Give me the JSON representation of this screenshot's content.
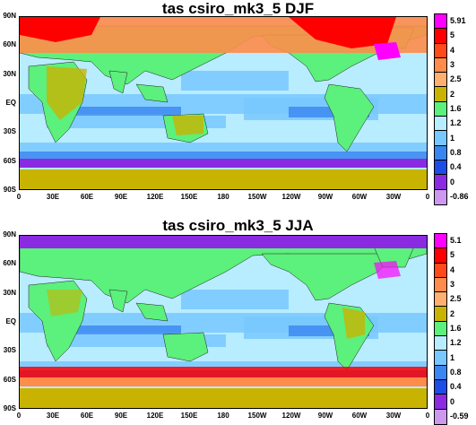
{
  "panels": [
    {
      "title": "tas csiro_mk3_5 DJF",
      "colorbar_labels": [
        "5.91",
        "5",
        "4",
        "3",
        "2.5",
        "2",
        "1.6",
        "1.2",
        "1",
        "0.8",
        "0.4",
        "0",
        "-0.86"
      ]
    },
    {
      "title": "tas csiro_mk3_5 JJA",
      "colorbar_labels": [
        "5.1",
        "5",
        "4",
        "3",
        "2.5",
        "2",
        "1.6",
        "1.2",
        "1",
        "0.8",
        "0.4",
        "0",
        "-0.59"
      ]
    }
  ],
  "lat_labels": [
    "90N",
    "60N",
    "30N",
    "EQ",
    "30S",
    "60S",
    "90S"
  ],
  "lon_labels": [
    "0",
    "30E",
    "60E",
    "90E",
    "120E",
    "150E",
    "180",
    "150W",
    "120W",
    "90W",
    "60W",
    "30W",
    "0"
  ],
  "colorbar_colors": [
    "#ff00ff",
    "#ff0000",
    "#ff4a1a",
    "#ff8c4a",
    "#ffb070",
    "#c8b400",
    "#5cf07c",
    "#b8ecff",
    "#78c8ff",
    "#3a86f0",
    "#1a4ee6",
    "#8a2be2",
    "#cc99ee"
  ],
  "map_palette": {
    "ocean_main": "#b8ecff",
    "ocean_mid": "#78c8ff",
    "ocean_deep": "#3a86f0",
    "ice_purple": "#8a2be2",
    "land_green": "#5cf07c",
    "land_olive": "#c8b400",
    "warm_orange": "#ff8c4a",
    "hot_red": "#ff0000",
    "very_hot": "#ff00ff"
  }
}
